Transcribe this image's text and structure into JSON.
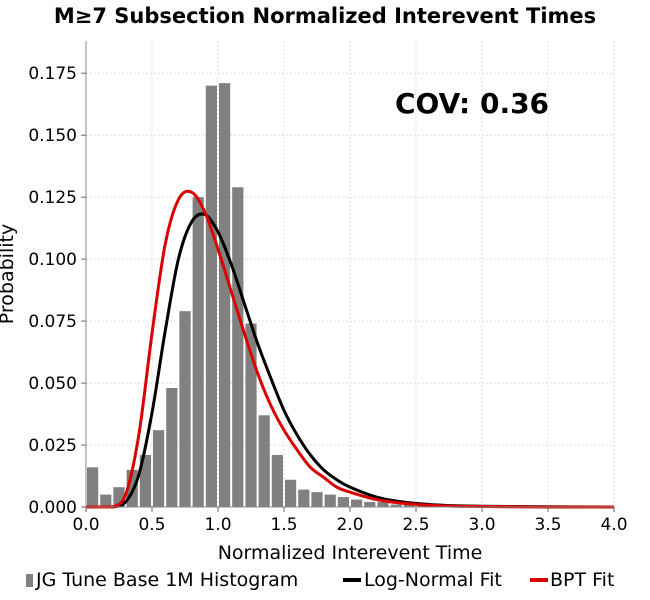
{
  "chart_data": {
    "type": "bar",
    "title": "M≥7 Subsection Normalized Interevent Times",
    "xlabel": "Normalized Interevent Time",
    "ylabel": "Probability",
    "xlim": [
      0,
      4.0
    ],
    "ylim": [
      0,
      0.188
    ],
    "xticks": [
      "0.0",
      "0.5",
      "1.0",
      "1.5",
      "2.0",
      "2.5",
      "3.0",
      "3.5",
      "4.0"
    ],
    "yticks": [
      "0.000",
      "0.025",
      "0.050",
      "0.075",
      "0.100",
      "0.125",
      "0.150",
      "0.175"
    ],
    "grid": true,
    "annotation": "COV: 0.36",
    "legend_position": "bottom",
    "histogram": {
      "name": "JG Tune Base 1M Histogram",
      "color": "#808080",
      "bin_width": 0.1,
      "x": [
        0.05,
        0.15,
        0.25,
        0.35,
        0.45,
        0.55,
        0.65,
        0.75,
        0.85,
        0.95,
        1.05,
        1.15,
        1.25,
        1.35,
        1.45,
        1.55,
        1.65,
        1.75,
        1.85,
        1.95,
        2.05,
        2.15,
        2.25,
        2.35,
        2.45,
        2.55,
        2.65,
        2.75,
        2.85,
        2.95,
        3.05,
        3.15,
        3.25
      ],
      "values": [
        0.016,
        0.005,
        0.008,
        0.015,
        0.021,
        0.031,
        0.048,
        0.079,
        0.125,
        0.17,
        0.171,
        0.129,
        0.074,
        0.037,
        0.021,
        0.011,
        0.007,
        0.006,
        0.005,
        0.004,
        0.003,
        0.002,
        0.002,
        0.001,
        0.001,
        0.0006,
        0.0004,
        0.0003,
        0.0002,
        0.0002,
        0.0001,
        0.0001,
        0.0001
      ]
    },
    "series": [
      {
        "name": "Log-Normal Fit",
        "color": "#000000",
        "x": [
          0.0,
          0.1,
          0.2,
          0.3,
          0.4,
          0.5,
          0.6,
          0.7,
          0.8,
          0.9,
          1.0,
          1.1,
          1.2,
          1.3,
          1.4,
          1.5,
          1.6,
          1.7,
          1.8,
          1.9,
          2.0,
          2.2,
          2.4,
          2.6,
          2.8,
          3.0,
          3.5,
          4.0
        ],
        "values": [
          0.0,
          0.0,
          0.0,
          0.002,
          0.013,
          0.038,
          0.071,
          0.1,
          0.115,
          0.118,
          0.111,
          0.098,
          0.082,
          0.066,
          0.052,
          0.039,
          0.029,
          0.021,
          0.015,
          0.011,
          0.008,
          0.004,
          0.002,
          0.001,
          0.0005,
          0.0003,
          0.0001,
          0.0
        ]
      },
      {
        "name": "BPT Fit",
        "color": "#dd0000",
        "x": [
          0.0,
          0.1,
          0.2,
          0.3,
          0.4,
          0.5,
          0.6,
          0.7,
          0.8,
          0.9,
          1.0,
          1.1,
          1.2,
          1.3,
          1.4,
          1.5,
          1.6,
          1.7,
          1.8,
          1.9,
          2.0,
          2.2,
          2.4,
          2.6,
          2.8,
          3.0,
          3.5,
          4.0
        ],
        "values": [
          0.0,
          0.0,
          0.0,
          0.005,
          0.029,
          0.07,
          0.106,
          0.124,
          0.127,
          0.119,
          0.104,
          0.087,
          0.07,
          0.054,
          0.041,
          0.031,
          0.023,
          0.016,
          0.012,
          0.008,
          0.006,
          0.003,
          0.0015,
          0.0007,
          0.0003,
          0.0002,
          0.0,
          0.0
        ]
      }
    ]
  }
}
